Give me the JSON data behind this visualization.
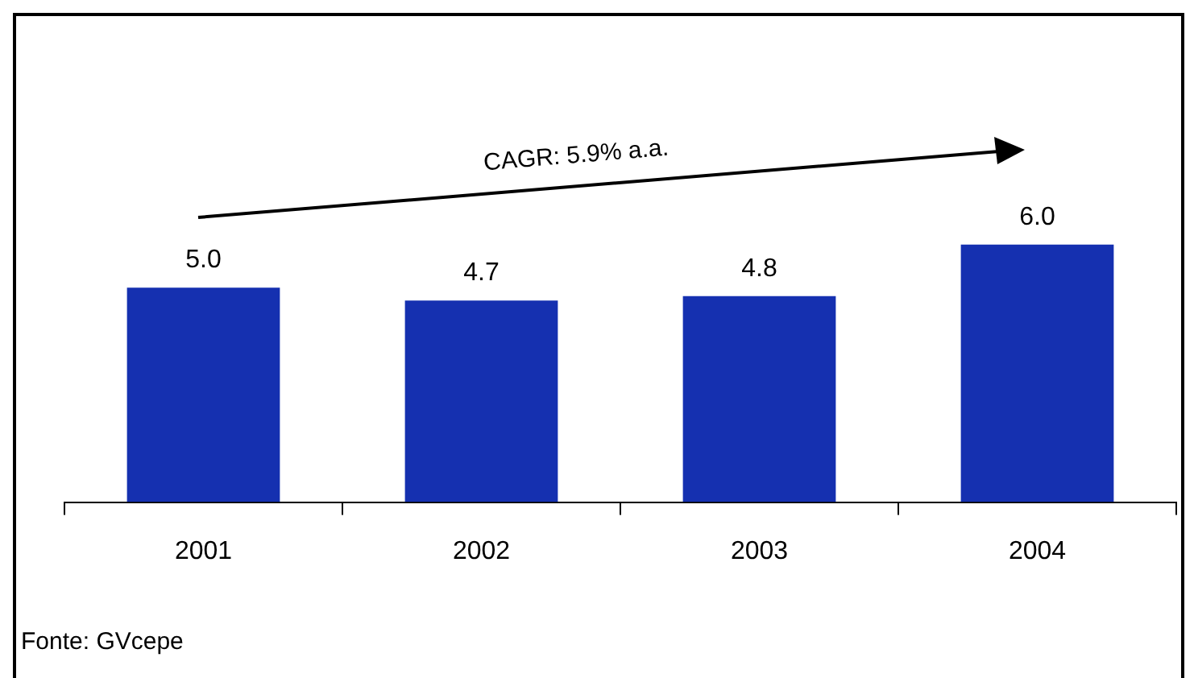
{
  "chart_data": {
    "type": "bar",
    "categories": [
      "2001",
      "2002",
      "2003",
      "2004"
    ],
    "values": [
      5.0,
      4.7,
      4.8,
      6.0
    ],
    "value_labels": [
      "5.0",
      "4.7",
      "4.8",
      "6.0"
    ],
    "color": "#1530b0",
    "tick_labels": "x",
    "annotations": [
      "CAGR: 5.9% a.a.",
      "Fonte: GVcepe"
    ],
    "grid": false,
    "legend": false
  }
}
